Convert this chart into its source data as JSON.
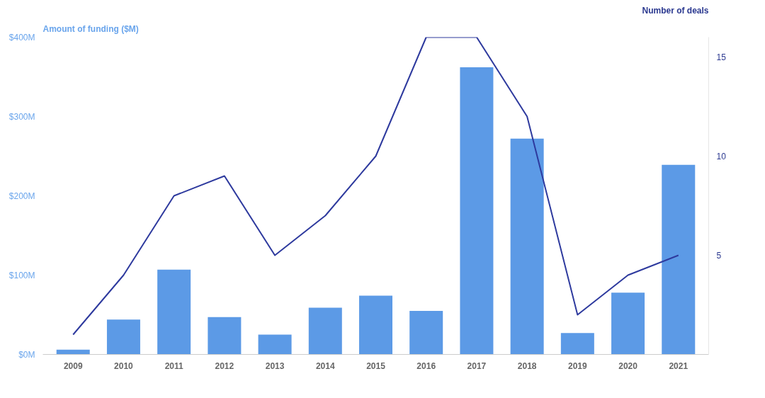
{
  "chart_data": {
    "type": "bar",
    "ylabel": "Amount of funding ($M)",
    "y2label": "Number of deals",
    "categories": [
      "2009",
      "2010",
      "2011",
      "2012",
      "2013",
      "2014",
      "2015",
      "2016",
      "2017",
      "2018",
      "2019",
      "2020",
      "2021"
    ],
    "series": [
      {
        "color": "#5c9ae6",
        "values": [
          6,
          44,
          107,
          47,
          25,
          59,
          74,
          55,
          362,
          272,
          27,
          78,
          239
        ]
      },
      {
        "type": "line",
        "axis": "y2",
        "color": "#2e3a9e",
        "values": [
          1,
          4,
          8,
          9,
          5,
          7,
          10,
          16,
          16,
          12,
          2,
          4,
          5
        ]
      }
    ],
    "ylim": [
      0,
      400
    ],
    "yticks": [
      {
        "value": 0,
        "label": "$0M"
      },
      {
        "value": 100,
        "label": "$100M"
      },
      {
        "value": 200,
        "label": "$200M"
      },
      {
        "value": 300,
        "label": "$300M"
      },
      {
        "value": 400,
        "label": "$400M"
      }
    ],
    "y2lim": [
      0,
      16
    ],
    "y2ticks": [
      5,
      10,
      15
    ],
    "grid": false,
    "marker": "none"
  }
}
